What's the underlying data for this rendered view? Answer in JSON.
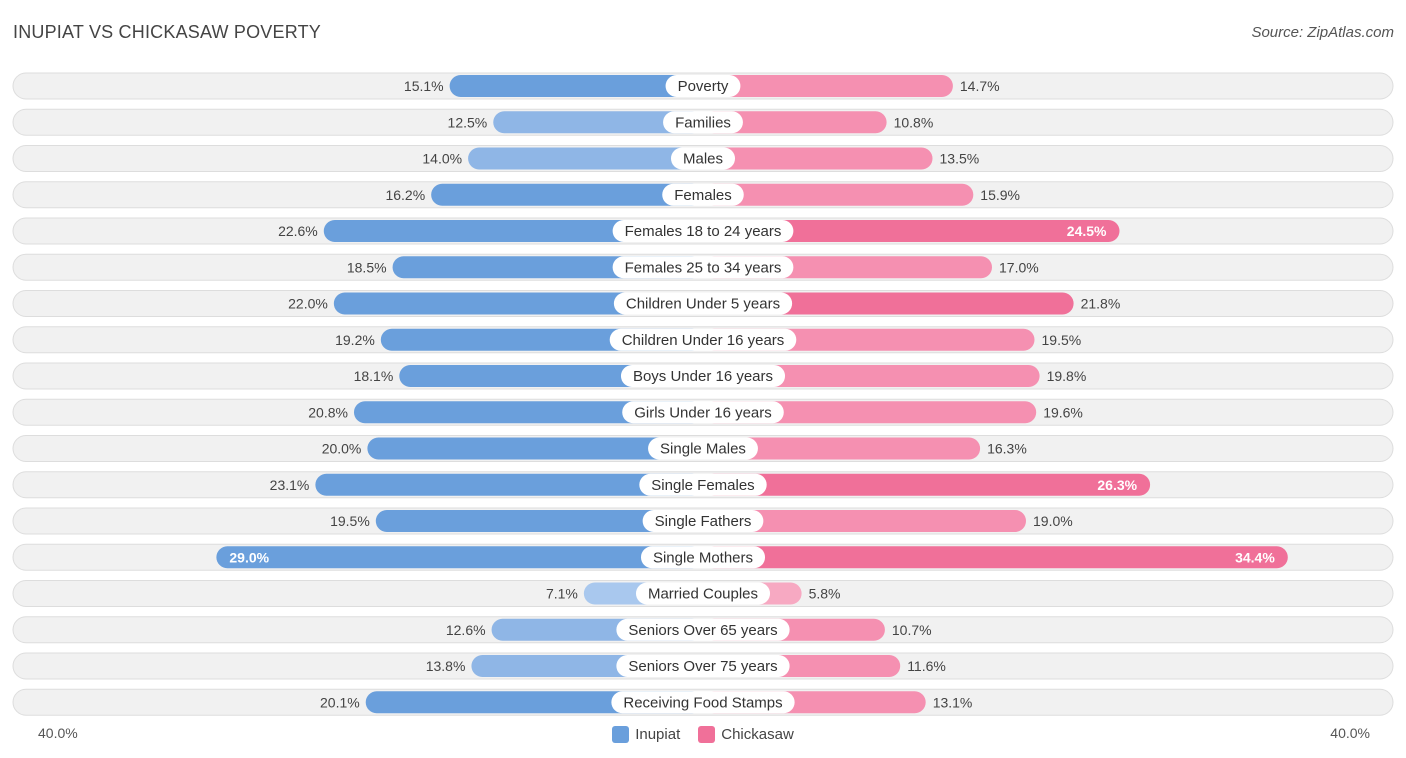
{
  "header": {
    "title": "INUPIAT VS CHICKASAW POVERTY",
    "source": "Source: ZipAtlas.com"
  },
  "colors": {
    "inupiat_strong": "#6a9fdc",
    "inupiat_light": "#a9c8ee",
    "chickasaw_strong": "#f07099",
    "chickasaw_light": "#f7a9c2",
    "row_bg": "#f1f1f1",
    "row_border": "#dddddd"
  },
  "chart_data": {
    "type": "bar",
    "orientation": "horizontal-diverging",
    "title": "INUPIAT VS CHICKASAW POVERTY",
    "xlim": [
      -40,
      40
    ],
    "axis_left_label": "40.0%",
    "axis_right_label": "40.0%",
    "categories": [
      "Poverty",
      "Families",
      "Males",
      "Females",
      "Females 18 to 24 years",
      "Females 25 to 34 years",
      "Children Under 5 years",
      "Children Under 16 years",
      "Boys Under 16 years",
      "Girls Under 16 years",
      "Single Males",
      "Single Females",
      "Single Fathers",
      "Single Mothers",
      "Married Couples",
      "Seniors Over 65 years",
      "Seniors Over 75 years",
      "Receiving Food Stamps"
    ],
    "series": [
      {
        "name": "Inupiat",
        "side": "left",
        "values": [
          15.1,
          12.5,
          14.0,
          16.2,
          22.6,
          18.5,
          22.0,
          19.2,
          18.1,
          20.8,
          20.0,
          23.1,
          19.5,
          29.0,
          7.1,
          12.6,
          13.8,
          20.1
        ],
        "labels": [
          "15.1%",
          "12.5%",
          "14.0%",
          "16.2%",
          "22.6%",
          "18.5%",
          "22.0%",
          "19.2%",
          "18.1%",
          "20.8%",
          "20.0%",
          "23.1%",
          "19.5%",
          "29.0%",
          "7.1%",
          "12.6%",
          "13.8%",
          "20.1%"
        ]
      },
      {
        "name": "Chickasaw",
        "side": "right",
        "values": [
          14.7,
          10.8,
          13.5,
          15.9,
          24.5,
          17.0,
          21.8,
          19.5,
          19.8,
          19.6,
          16.3,
          26.3,
          19.0,
          34.4,
          5.8,
          10.7,
          11.6,
          13.1
        ],
        "labels": [
          "14.7%",
          "10.8%",
          "13.5%",
          "15.9%",
          "24.5%",
          "17.0%",
          "21.8%",
          "19.5%",
          "19.8%",
          "19.6%",
          "16.3%",
          "26.3%",
          "19.0%",
          "34.4%",
          "5.8%",
          "10.7%",
          "11.6%",
          "13.1%"
        ]
      }
    ],
    "legend": {
      "position": "bottom-center",
      "items": [
        "Inupiat",
        "Chickasaw"
      ]
    }
  }
}
